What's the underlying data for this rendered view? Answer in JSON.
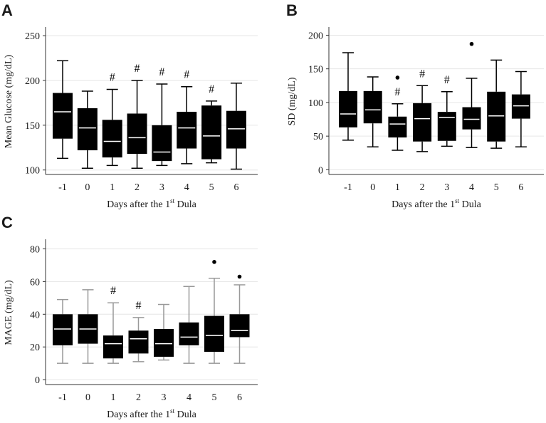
{
  "chart_data": [
    {
      "panel": "A",
      "type": "box",
      "ylabel": "Mean Glucose (mg/dL)",
      "xlabel": {
        "pre": "Days after the 1",
        "sup": "st",
        "post": " Dula"
      },
      "ylim": [
        95,
        258
      ],
      "yticks": [
        100,
        150,
        200,
        250
      ],
      "categories": [
        "-1",
        "0",
        "1",
        "2",
        "3",
        "4",
        "5",
        "6"
      ],
      "whisker_color": "#000000",
      "boxes": [
        {
          "min": 113,
          "q1": 135,
          "median": 165,
          "q3": 186,
          "max": 222,
          "sig": ""
        },
        {
          "min": 102,
          "q1": 122,
          "median": 147,
          "q3": 169,
          "max": 188,
          "sig": ""
        },
        {
          "min": 105,
          "q1": 114,
          "median": 132,
          "q3": 156,
          "max": 190,
          "sig": "#"
        },
        {
          "min": 102,
          "q1": 118,
          "median": 136,
          "q3": 163,
          "max": 200,
          "sig": "#"
        },
        {
          "min": 105,
          "q1": 110,
          "median": 120,
          "q3": 150,
          "max": 196,
          "sig": "#"
        },
        {
          "min": 107,
          "q1": 124,
          "median": 147,
          "q3": 165,
          "max": 193,
          "sig": "#"
        },
        {
          "min": 108,
          "q1": 112,
          "median": 138,
          "q3": 172,
          "max": 177,
          "sig": "#"
        },
        {
          "min": 101,
          "q1": 124,
          "median": 146,
          "q3": 166,
          "max": 197,
          "sig": ""
        }
      ]
    },
    {
      "panel": "B",
      "type": "box",
      "ylabel": "SD (mg/dL)",
      "xlabel": {
        "pre": "Days after the 1",
        "sup": "st",
        "post": " Dula"
      },
      "ylim": [
        -7,
        210
      ],
      "yticks": [
        0,
        50,
        100,
        150,
        200
      ],
      "categories": [
        "-1",
        "0",
        "1",
        "2",
        "3",
        "4",
        "5",
        "6"
      ],
      "whisker_color": "#000000",
      "boxes": [
        {
          "min": 44,
          "q1": 63,
          "median": 83,
          "q3": 117,
          "max": 174,
          "sig": "",
          "outliers": []
        },
        {
          "min": 34,
          "q1": 69,
          "median": 89,
          "q3": 117,
          "max": 138,
          "sig": "",
          "outliers": []
        },
        {
          "min": 29,
          "q1": 48,
          "median": 68,
          "q3": 79,
          "max": 98,
          "sig": "#",
          "outliers": [
            137
          ]
        },
        {
          "min": 27,
          "q1": 42,
          "median": 76,
          "q3": 99,
          "max": 125,
          "sig": "#",
          "outliers": []
        },
        {
          "min": 35,
          "q1": 43,
          "median": 78,
          "q3": 86,
          "max": 116,
          "sig": "#",
          "outliers": []
        },
        {
          "min": 33,
          "q1": 60,
          "median": 75,
          "q3": 93,
          "max": 136,
          "sig": "",
          "outliers": [
            187
          ]
        },
        {
          "min": 32,
          "q1": 42,
          "median": 80,
          "q3": 116,
          "max": 163,
          "sig": "",
          "outliers": []
        },
        {
          "min": 34,
          "q1": 76,
          "median": 95,
          "q3": 112,
          "max": 146,
          "sig": "",
          "outliers": []
        }
      ]
    },
    {
      "panel": "C",
      "type": "box",
      "ylabel": "MAGE (mg/dL)",
      "xlabel": {
        "pre": "Days after the 1",
        "sup": "st",
        "post": " Dula"
      },
      "ylim": [
        -3,
        85
      ],
      "yticks": [
        0,
        20,
        40,
        60,
        80
      ],
      "categories": [
        "-1",
        "0",
        "1",
        "2",
        "3",
        "4",
        "5",
        "6"
      ],
      "whisker_color": "#999999",
      "boxes": [
        {
          "min": 10,
          "q1": 21,
          "median": 31,
          "q3": 40,
          "max": 49,
          "sig": "",
          "outliers": []
        },
        {
          "min": 10,
          "q1": 22,
          "median": 31,
          "q3": 40,
          "max": 55,
          "sig": "",
          "outliers": []
        },
        {
          "min": 10,
          "q1": 13,
          "median": 22,
          "q3": 27,
          "max": 47,
          "sig": "#",
          "outliers": []
        },
        {
          "min": 11,
          "q1": 16,
          "median": 25,
          "q3": 30,
          "max": 38,
          "sig": "#",
          "outliers": []
        },
        {
          "min": 12,
          "q1": 14,
          "median": 22,
          "q3": 31,
          "max": 46,
          "sig": "",
          "outliers": []
        },
        {
          "min": 10,
          "q1": 21,
          "median": 26,
          "q3": 35,
          "max": 57,
          "sig": "",
          "outliers": []
        },
        {
          "min": 10,
          "q1": 17,
          "median": 27,
          "q3": 39,
          "max": 62,
          "sig": "",
          "outliers": [
            72
          ]
        },
        {
          "min": 10,
          "q1": 26,
          "median": 30,
          "q3": 40,
          "max": 58,
          "sig": "",
          "outliers": [
            63
          ]
        }
      ]
    }
  ]
}
